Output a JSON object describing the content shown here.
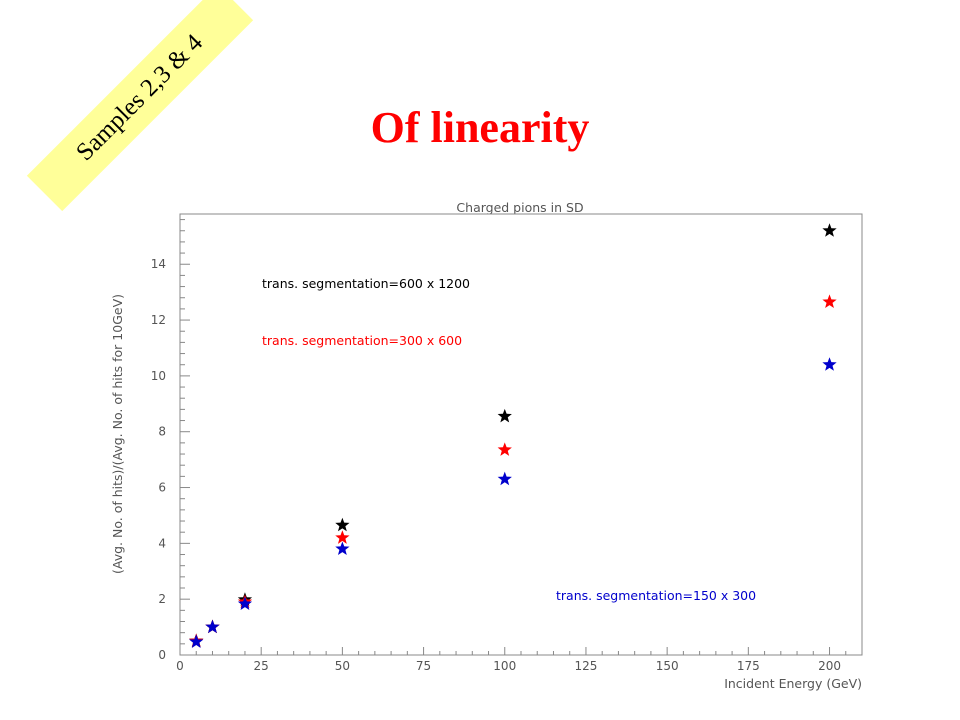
{
  "slide": {
    "title": "Of linearity",
    "banner": "Samples 2,3 & 4"
  },
  "colors": {
    "title": "#ff0000",
    "banner_bg": "#ffff99",
    "axis": "#888888",
    "text": "#555555"
  },
  "chart_data": {
    "type": "scatter",
    "title": "Charged pions in SD",
    "xlabel": "Incident Energy (GeV)",
    "ylabel": "(Avg. No. of hits)/(Avg. No. of hits for 10GeV)",
    "xlim": [
      0,
      210
    ],
    "ylim": [
      0,
      15.8
    ],
    "xticks": [
      0,
      25,
      50,
      75,
      100,
      125,
      150,
      175,
      200
    ],
    "yticks": [
      0,
      2,
      4,
      6,
      8,
      10,
      12,
      14
    ],
    "grid": false,
    "marker": "star",
    "series": [
      {
        "name": "trans. segmentation=600 x 1200",
        "color": "#000000",
        "x": [
          5,
          10,
          20,
          50,
          100,
          200
        ],
        "y": [
          0.5,
          1.0,
          1.98,
          4.65,
          8.55,
          15.2
        ]
      },
      {
        "name": "trans. segmentation=300 x 600",
        "color": "#ff0000",
        "x": [
          5,
          10,
          20,
          50,
          100,
          200
        ],
        "y": [
          0.5,
          1.0,
          1.9,
          4.2,
          7.35,
          12.65
        ]
      },
      {
        "name": "trans. segmentation=150 x 300",
        "color": "#0000cc",
        "x": [
          5,
          10,
          20,
          50,
          100,
          200
        ],
        "y": [
          0.47,
          1.0,
          1.83,
          3.8,
          6.3,
          10.4
        ]
      }
    ]
  }
}
